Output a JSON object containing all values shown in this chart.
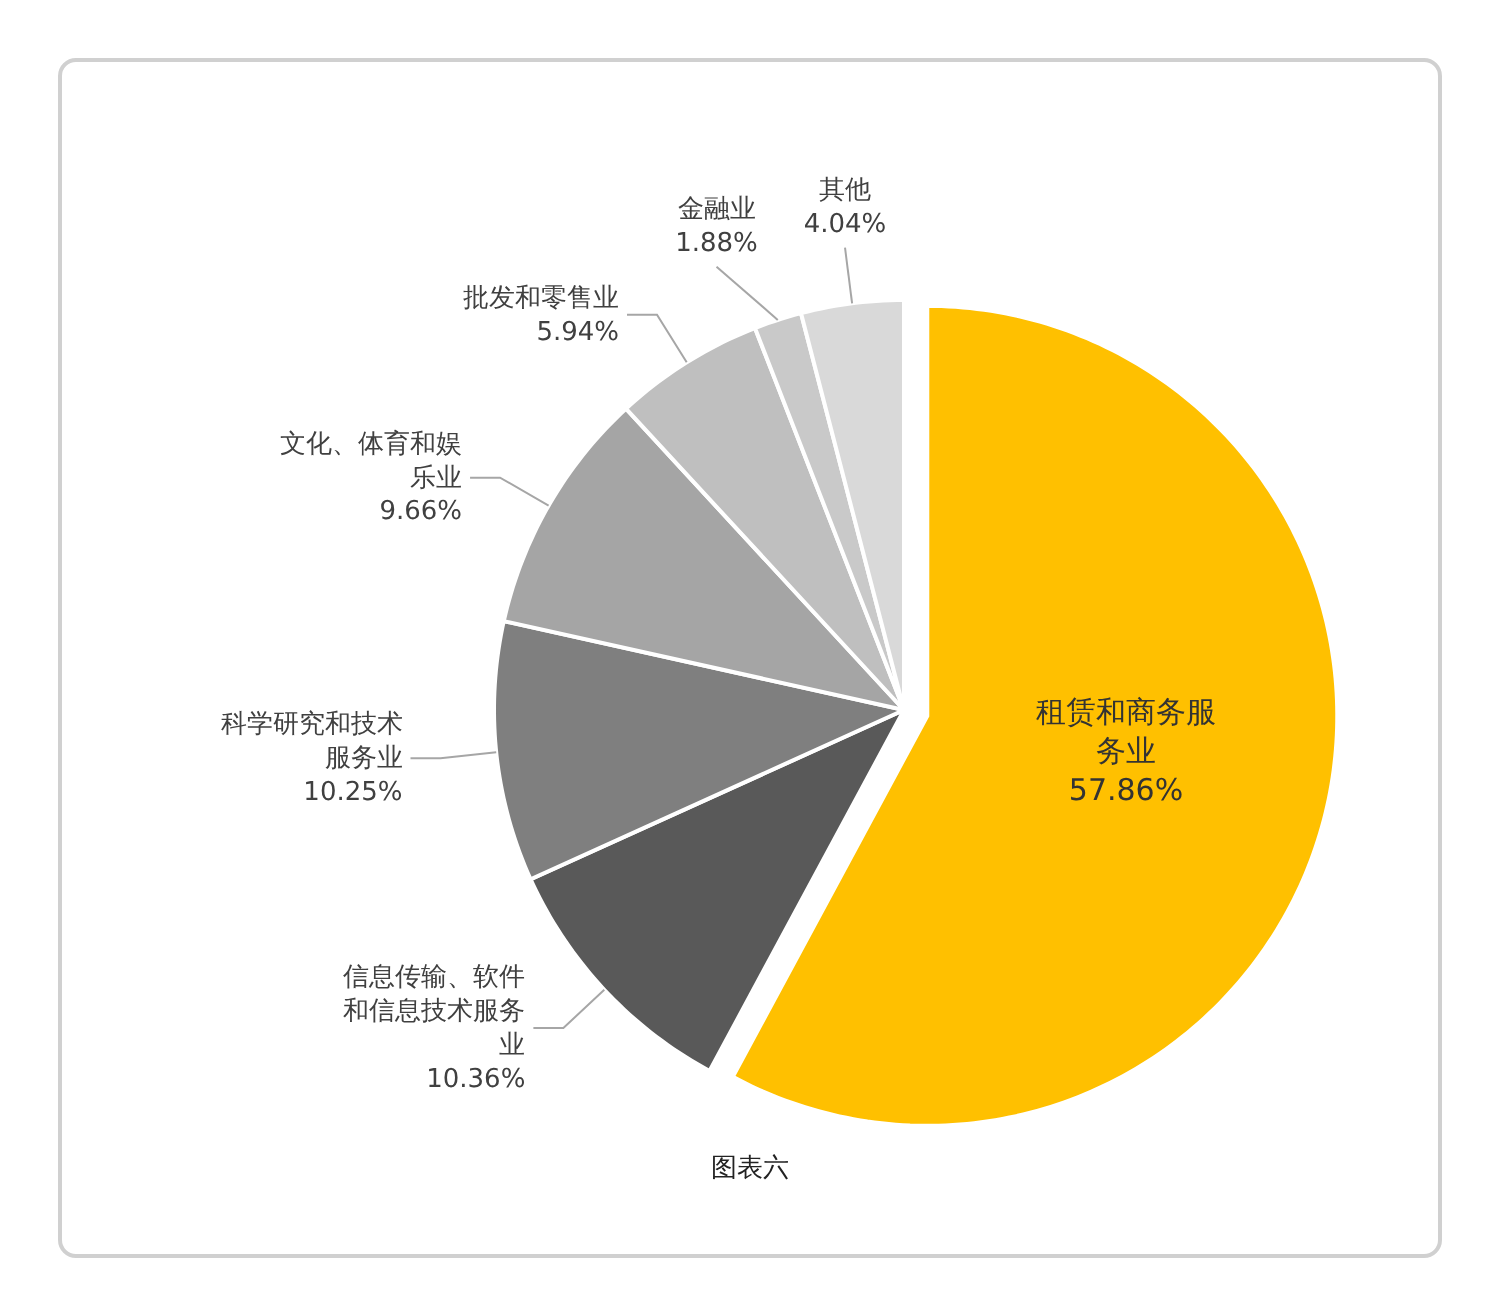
{
  "chart_data": {
    "type": "pie",
    "categories": [
      "租赁和商务服务业",
      "信息传输、软件和信息技术服务业",
      "科学研究和技术服务业",
      "文化、体育和娱乐业",
      "批发和零售业",
      "金融业",
      "其他"
    ],
    "values": [
      57.86,
      10.36,
      10.25,
      9.66,
      5.94,
      1.88,
      4.04
    ],
    "colors": [
      "#ffc000",
      "#595959",
      "#7f7f7f",
      "#a5a5a5",
      "#bfbfbf",
      "#c9c9c9",
      "#d9d9d9"
    ],
    "value_labels": [
      "57.86%",
      "10.36%",
      "10.25%",
      "9.66%",
      "5.94%",
      "1.88%",
      "4.04%"
    ],
    "annotations": [
      "图表六"
    ]
  }
}
